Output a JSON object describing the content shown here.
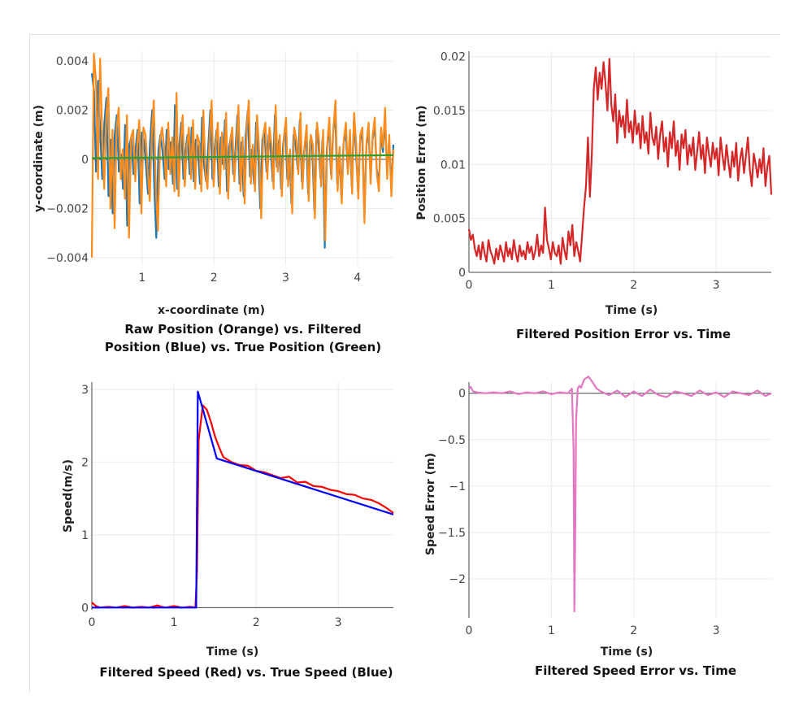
{
  "chart_data": [
    {
      "type": "line",
      "title_lines": [
        "Raw Position (Orange) vs. Filtered",
        "Position (Blue) vs. True Position (Green)"
      ],
      "xlabel": "x-coordinate (m)",
      "ylabel": "y-coordinate (m)",
      "xlim": [
        0.3,
        4.5
      ],
      "ylim": [
        -0.0043,
        0.0044
      ],
      "x_ticks": [
        {
          "v": 1,
          "label": "1"
        },
        {
          "v": 2,
          "label": "2"
        },
        {
          "v": 3,
          "label": "3"
        },
        {
          "v": 4,
          "label": "4"
        }
      ],
      "y_ticks": [
        {
          "v": -0.004,
          "label": "−0.004"
        },
        {
          "v": -0.002,
          "label": "−0.002"
        },
        {
          "v": 0,
          "label": "0"
        },
        {
          "v": 0.002,
          "label": "0.002"
        },
        {
          "v": 0.004,
          "label": "0.004"
        }
      ],
      "grid": true,
      "series": [
        {
          "color": "#1f77b4",
          "x_range": [
            0.3,
            4.5
          ],
          "values": [
            0.0035,
            0.0028,
            -0.0005,
            0.0032,
            0.0012,
            -0.0008,
            0.0015,
            0.0025,
            -0.0015,
            0.0008,
            -0.0022,
            0.001,
            0.0018,
            -0.0005,
            0.0002,
            -0.0012,
            0.0014,
            -0.0027,
            0.0006,
            0.0009,
            -0.0006,
            0.0004,
            0.0012,
            -0.0018,
            0.0011,
            0.0008,
            -0.0002,
            -0.0014,
            0.0007,
            0.002,
            -0.0011,
            -0.0032,
            0.0004,
            0.001,
            0.0003,
            -0.0008,
            0.0012,
            -0.0004,
            0.0007,
            -0.001,
            0.0022,
            -0.0012,
            0.0005,
            0.0015,
            -0.0008,
            0.0003,
            0.001,
            -0.0006,
            0.0013,
            -0.0009,
            0.0008,
            0.0005,
            -0.001,
            0.0017,
            -0.0003,
            -0.0009,
            0.0006,
            0.002,
            -0.0008,
            0.0004,
            0.0012,
            -0.0011,
            0.0009,
            -0.0002,
            0.0016,
            -0.0013,
            0.0005,
            0.001,
            -0.0006,
            0.0003,
            0.0018,
            -0.001,
            0.0007,
            -0.0015,
            0.001,
            0.002,
            -0.0007,
            0.0004,
            -0.001,
            0.0015,
            0.0002,
            -0.002,
            0.0008,
            0.0012,
            -0.0005,
            0.001,
            0.0004,
            -0.0009,
            0.0018,
            -0.0003,
            0.0008,
            -0.0012,
            0.0006,
            0.0014,
            -0.0008,
            0.0002,
            -0.0018,
            0.001,
            0.0006,
            -0.0004,
            0.0016,
            -0.0009,
            0.0003,
            0.0011,
            -0.0014,
            0.0008,
            0.0004,
            -0.0021,
            0.0012,
            0.0006,
            -0.0008,
            0.0009,
            -0.0036,
            0.0004,
            0.0014,
            -0.0006,
            0.001,
            0.002,
            -0.001,
            0.0003,
            -0.0015,
            0.0006,
            0.0012,
            -0.0004,
            0.0009,
            -0.0011,
            0.0016,
            0.0004,
            -0.0013,
            0.0008,
            0.001,
            -0.0023,
            0.0005,
            0.0012,
            -0.0007,
            0.0008,
            0.0014,
            -0.0004,
            -0.001,
            0.001,
            0.0003,
            0.0017,
            -0.0006,
            0.0008,
            -0.0012,
            0.0006
          ]
        },
        {
          "color": "#ff8c1a",
          "x_range": [
            0.3,
            4.5
          ],
          "values": [
            -0.004,
            0.0043,
            0.0032,
            -0.0008,
            0.0041,
            0.001,
            -0.0012,
            0.0018,
            0.0029,
            -0.002,
            0.0012,
            -0.0028,
            0.0013,
            0.0021,
            -0.0008,
            0.0004,
            -0.0016,
            0.0018,
            -0.0032,
            0.0009,
            0.0012,
            -0.0009,
            0.0006,
            0.0016,
            -0.0022,
            0.0013,
            0.001,
            -0.0004,
            -0.0017,
            0.001,
            0.0024,
            -0.0013,
            -0.0029,
            0.0007,
            0.0013,
            0.0005,
            -0.0011,
            0.0015,
            -0.0006,
            0.0009,
            -0.0013,
            0.0027,
            -0.0015,
            0.0007,
            0.0018,
            -0.0011,
            0.0005,
            0.0013,
            -0.0008,
            0.0016,
            -0.0012,
            0.001,
            0.0007,
            -0.0013,
            0.002,
            -0.0005,
            -0.0012,
            0.0008,
            0.0024,
            -0.0011,
            0.0006,
            0.0015,
            -0.0014,
            0.0011,
            -0.0004,
            0.0019,
            -0.0016,
            0.0007,
            0.0013,
            -0.0009,
            0.0005,
            0.0022,
            -0.0013,
            0.0009,
            -0.0018,
            0.0013,
            0.0024,
            -0.001,
            0.0006,
            -0.0013,
            0.0018,
            0.0004,
            -0.0024,
            0.001,
            0.0015,
            -0.0008,
            0.0013,
            0.0006,
            -0.0012,
            0.0022,
            -0.0005,
            0.001,
            -0.0015,
            0.0008,
            0.0017,
            -0.0011,
            0.0004,
            -0.0022,
            0.0013,
            0.0008,
            -0.0006,
            0.0019,
            -0.0012,
            0.0005,
            0.0014,
            -0.0017,
            0.001,
            0.0006,
            -0.0024,
            0.0015,
            0.0008,
            -0.0011,
            0.0012,
            -0.0033,
            0.0006,
            0.0017,
            -0.0008,
            0.0013,
            0.0024,
            -0.0013,
            0.0005,
            -0.0018,
            0.0008,
            0.0015,
            -0.0006,
            0.0012,
            -0.0014,
            0.0019,
            0.0006,
            -0.0016,
            0.001,
            0.0013,
            -0.0026,
            0.0007,
            0.0015,
            -0.001,
            0.001,
            0.0017,
            -0.0006,
            -0.0013,
            0.0013,
            0.0005,
            0.0021,
            -0.0008,
            0.001,
            -0.0015,
            0.0004
          ]
        },
        {
          "color": "#2ca02c",
          "x": [
            0.3,
            4.5
          ],
          "values": [
            5e-05,
            0.00017
          ]
        }
      ]
    },
    {
      "type": "line",
      "title_lines": [
        "Filtered Position Error vs. Time"
      ],
      "xlabel": "Time (s)",
      "ylabel": "Position Error (m)",
      "xlim": [
        0,
        3.67
      ],
      "ylim": [
        0,
        0.0205
      ],
      "x_ticks": [
        {
          "v": 0,
          "label": "0"
        },
        {
          "v": 1,
          "label": "1"
        },
        {
          "v": 2,
          "label": "2"
        },
        {
          "v": 3,
          "label": "3"
        }
      ],
      "y_ticks": [
        {
          "v": 0,
          "label": "0"
        },
        {
          "v": 0.005,
          "label": "0.005"
        },
        {
          "v": 0.01,
          "label": "0.01"
        },
        {
          "v": 0.015,
          "label": "0.015"
        },
        {
          "v": 0.02,
          "label": "0.02"
        }
      ],
      "grid": true,
      "series": [
        {
          "color": "#d62728",
          "x_range": [
            0,
            3.67
          ],
          "values": [
            0.004,
            0.003,
            0.0035,
            0.0022,
            0.0015,
            0.0025,
            0.0012,
            0.0028,
            0.0018,
            0.001,
            0.003,
            0.002,
            0.0015,
            0.0008,
            0.0022,
            0.0012,
            0.0025,
            0.0018,
            0.001,
            0.0028,
            0.0015,
            0.0022,
            0.0012,
            0.003,
            0.0018,
            0.001,
            0.0025,
            0.0015,
            0.002,
            0.0012,
            0.0028,
            0.0018,
            0.0024,
            0.0012,
            0.002,
            0.0035,
            0.0015,
            0.0025,
            0.0018,
            0.006,
            0.003,
            0.0022,
            0.0012,
            0.0028,
            0.0018,
            0.0015,
            0.0025,
            0.0008,
            0.0032,
            0.002,
            0.0012,
            0.0038,
            0.0025,
            0.0044,
            0.0015,
            0.0028,
            0.002,
            0.001,
            0.0035,
            0.006,
            0.008,
            0.0125,
            0.007,
            0.011,
            0.017,
            0.019,
            0.016,
            0.0185,
            0.017,
            0.0195,
            0.0175,
            0.015,
            0.0198,
            0.0155,
            0.014,
            0.0165,
            0.012,
            0.015,
            0.0135,
            0.0145,
            0.0125,
            0.016,
            0.013,
            0.014,
            0.012,
            0.015,
            0.0128,
            0.0138,
            0.0115,
            0.0145,
            0.012,
            0.013,
            0.011,
            0.0148,
            0.0125,
            0.0118,
            0.0135,
            0.0105,
            0.0128,
            0.014,
            0.0112,
            0.0125,
            0.0098,
            0.013,
            0.0115,
            0.014,
            0.0108,
            0.0122,
            0.0095,
            0.0128,
            0.0115,
            0.0132,
            0.01,
            0.0118,
            0.0108,
            0.0125,
            0.0095,
            0.0112,
            0.013,
            0.0105,
            0.0118,
            0.0092,
            0.0125,
            0.011,
            0.0098,
            0.012,
            0.0105,
            0.0115,
            0.009,
            0.0125,
            0.0108,
            0.0095,
            0.0118,
            0.0102,
            0.0088,
            0.0112,
            0.0098,
            0.012,
            0.0085,
            0.0105,
            0.0115,
            0.0092,
            0.0108,
            0.0125,
            0.0095,
            0.008,
            0.011,
            0.01,
            0.0088,
            0.0105,
            0.0092,
            0.0115,
            0.008,
            0.0098,
            0.0108,
            0.0072
          ]
        }
      ]
    },
    {
      "type": "line",
      "title_lines": [
        "Filtered Speed (Red) vs. True Speed (Blue)"
      ],
      "xlabel": "Time (s)",
      "ylabel": "Speed(m/s)",
      "xlim": [
        0,
        3.67
      ],
      "ylim": [
        -0.03,
        3.1
      ],
      "x_ticks": [
        {
          "v": 0,
          "label": "0"
        },
        {
          "v": 1,
          "label": "1"
        },
        {
          "v": 2,
          "label": "2"
        },
        {
          "v": 3,
          "label": "3"
        }
      ],
      "y_ticks": [
        {
          "v": 0,
          "label": "0"
        },
        {
          "v": 1,
          "label": "1"
        },
        {
          "v": 2,
          "label": "2"
        },
        {
          "v": 3,
          "label": "3"
        }
      ],
      "grid": true,
      "series": [
        {
          "color": "#ff0000",
          "x": [
            0,
            0.05,
            0.1,
            0.2,
            0.3,
            0.4,
            0.5,
            0.6,
            0.7,
            0.8,
            0.85,
            0.9,
            1.0,
            1.1,
            1.2,
            1.26,
            1.28,
            1.3,
            1.35,
            1.4,
            1.45,
            1.5,
            1.55,
            1.6,
            1.7,
            1.8,
            1.9,
            2.0,
            2.1,
            2.2,
            2.3,
            2.4,
            2.5,
            2.6,
            2.7,
            2.8,
            2.9,
            3.0,
            3.1,
            3.2,
            3.3,
            3.4,
            3.5,
            3.6,
            3.67
          ],
          "values": [
            0.07,
            0.02,
            0.0,
            0.01,
            0.0,
            0.02,
            0.0,
            0.01,
            0.0,
            0.03,
            0.01,
            0.0,
            0.02,
            0.0,
            0.01,
            0.0,
            0.5,
            2.3,
            2.78,
            2.72,
            2.55,
            2.35,
            2.2,
            2.07,
            2.0,
            1.96,
            1.95,
            1.88,
            1.86,
            1.82,
            1.78,
            1.8,
            1.72,
            1.73,
            1.67,
            1.66,
            1.62,
            1.6,
            1.56,
            1.55,
            1.5,
            1.48,
            1.43,
            1.36,
            1.3
          ]
        },
        {
          "color": "#0000ff",
          "x": [
            0,
            1.27,
            1.29,
            1.52,
            3.67
          ],
          "values": [
            0,
            0,
            2.97,
            2.05,
            1.28
          ]
        }
      ]
    },
    {
      "type": "line",
      "title_lines": [
        "Filtered Speed Error vs. Time"
      ],
      "xlabel": "Time (s)",
      "ylabel": "Speed Error (m)",
      "xlim": [
        0,
        3.67
      ],
      "ylim": [
        -2.42,
        0.12
      ],
      "x_ticks": [
        {
          "v": 0,
          "label": "0"
        },
        {
          "v": 1,
          "label": "1"
        },
        {
          "v": 2,
          "label": "2"
        },
        {
          "v": 3,
          "label": "3"
        }
      ],
      "y_ticks": [
        {
          "v": 0,
          "label": "0"
        },
        {
          "v": -0.5,
          "label": "−0.5"
        },
        {
          "v": -1,
          "label": "−1"
        },
        {
          "v": -1.5,
          "label": "−1.5"
        },
        {
          "v": -2,
          "label": "−2"
        }
      ],
      "grid": true,
      "series": [
        {
          "color": "#e377c2",
          "x": [
            0,
            0.02,
            0.05,
            0.1,
            0.2,
            0.3,
            0.4,
            0.5,
            0.6,
            0.7,
            0.8,
            0.9,
            1.0,
            1.1,
            1.2,
            1.25,
            1.27,
            1.28,
            1.29,
            1.3,
            1.32,
            1.34,
            1.36,
            1.4,
            1.45,
            1.5,
            1.55,
            1.6,
            1.7,
            1.8,
            1.9,
            2.0,
            2.1,
            2.2,
            2.3,
            2.4,
            2.5,
            2.6,
            2.7,
            2.8,
            2.9,
            3.0,
            3.1,
            3.2,
            3.3,
            3.4,
            3.5,
            3.6,
            3.67
          ],
          "values": [
            0.05,
            0.07,
            0.02,
            0.01,
            0.0,
            0.01,
            0.0,
            0.02,
            -0.01,
            0.01,
            0.0,
            0.02,
            -0.01,
            0.01,
            0.0,
            0.05,
            -0.6,
            -2.35,
            -1.5,
            -0.3,
            0.05,
            0.08,
            0.06,
            0.15,
            0.18,
            0.12,
            0.05,
            0.02,
            -0.02,
            0.03,
            -0.04,
            0.02,
            -0.03,
            0.04,
            -0.02,
            -0.04,
            0.02,
            0.0,
            -0.03,
            0.03,
            -0.02,
            0.01,
            -0.04,
            0.02,
            0.0,
            -0.02,
            0.03,
            -0.03,
            0.0
          ]
        }
      ]
    }
  ]
}
